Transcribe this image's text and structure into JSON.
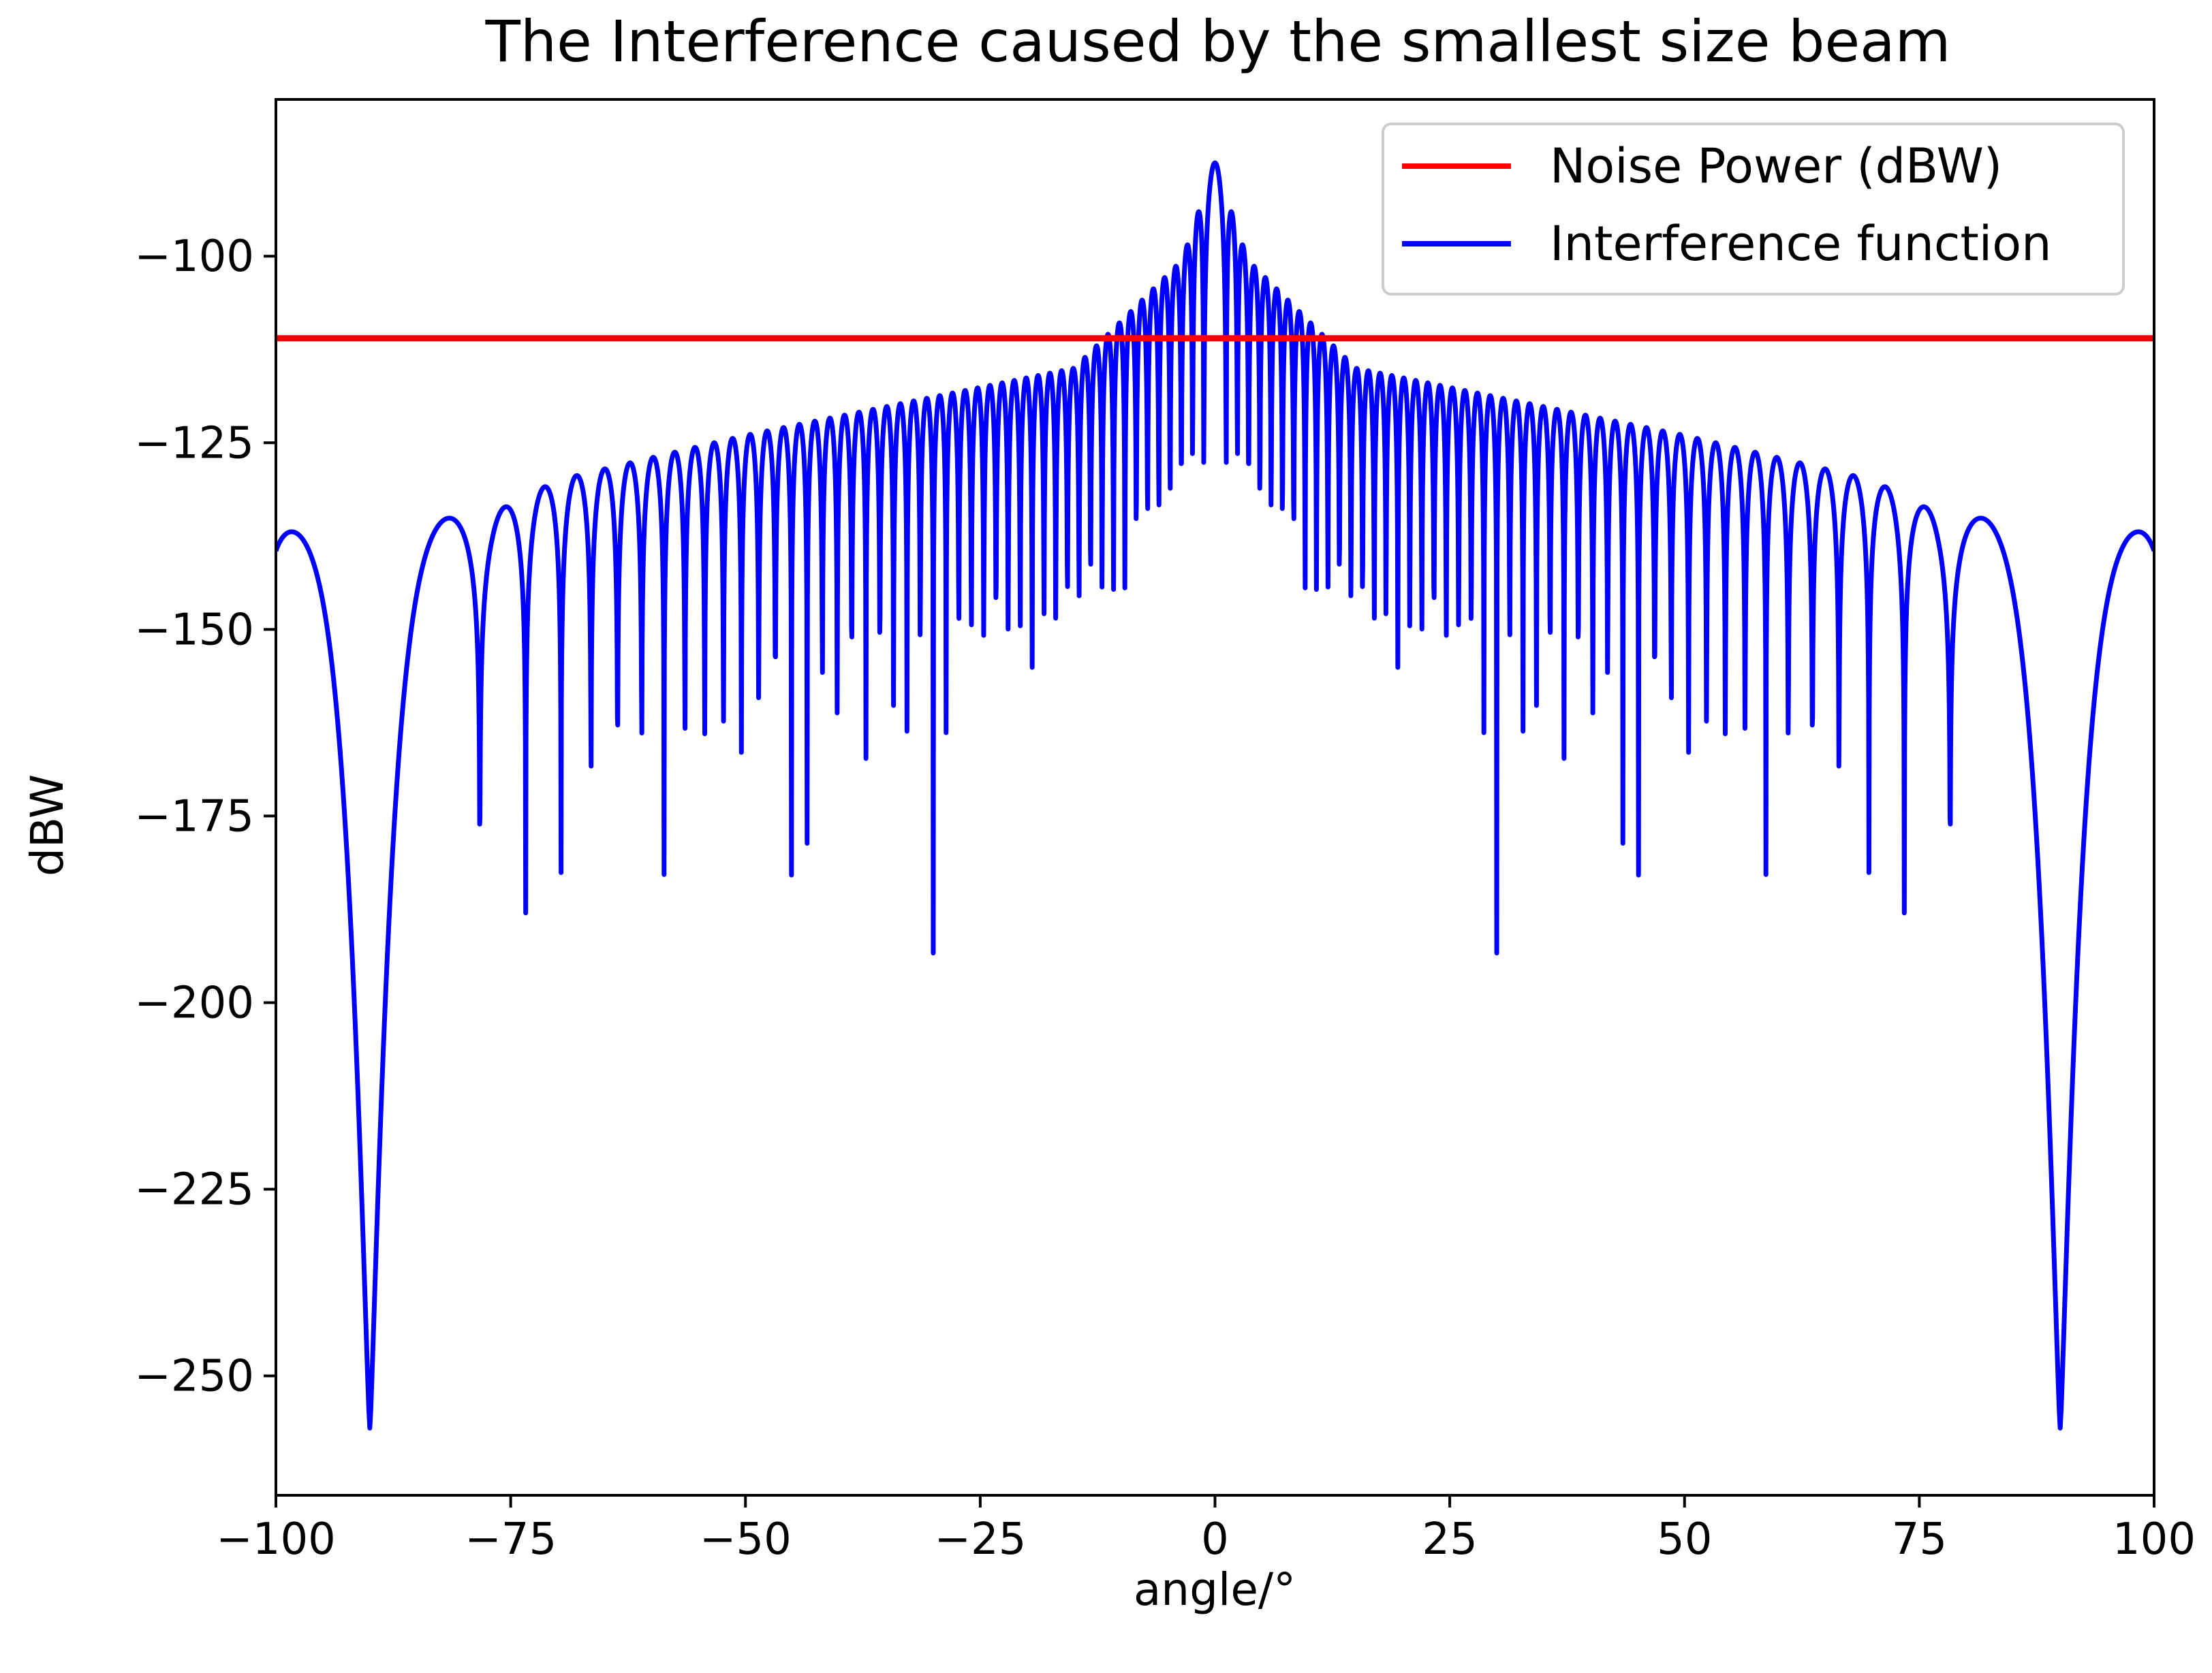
{
  "chart_data": {
    "type": "line",
    "title": "The Interference caused by the smallest size beam",
    "xlabel": "angle/°",
    "ylabel": "dBW",
    "xlim": [
      -100,
      100
    ],
    "ylim": [
      -266,
      -79
    ],
    "xticks": [
      -100,
      -75,
      -50,
      -25,
      0,
      25,
      50,
      75,
      100
    ],
    "xtick_labels": [
      "−100",
      "−75",
      "−50",
      "−25",
      "0",
      "25",
      "50",
      "75",
      "100"
    ],
    "yticks": [
      -100,
      -125,
      -150,
      -175,
      -200,
      -225,
      -250
    ],
    "ytick_labels": [
      "−100",
      "−125",
      "−150",
      "−175",
      "−200",
      "−225",
      "−250"
    ],
    "grid": false,
    "legend_position": "top-right",
    "series": [
      {
        "name": "Noise Power (dBW)",
        "color": "#ff0000",
        "kind": "hline",
        "value": -111
      },
      {
        "name": "Interference function",
        "color": "#0000ff",
        "kind": "curve",
        "x_range": [
          -100,
          100
        ],
        "peak_db": -87.5,
        "first_null_angle": 2.2,
        "first_sidelobe_db": -100.5,
        "sidelobe_at_15deg_db": -115,
        "sidelobe_at_50deg_db": -124,
        "sidelobe_at_70deg_db": -130,
        "sidelobe_at_77deg_db": -134.5,
        "edge_value_db": -137,
        "null_floor_db": -162,
        "deep_null_angle": 90,
        "deep_null_db": -257
      }
    ]
  }
}
